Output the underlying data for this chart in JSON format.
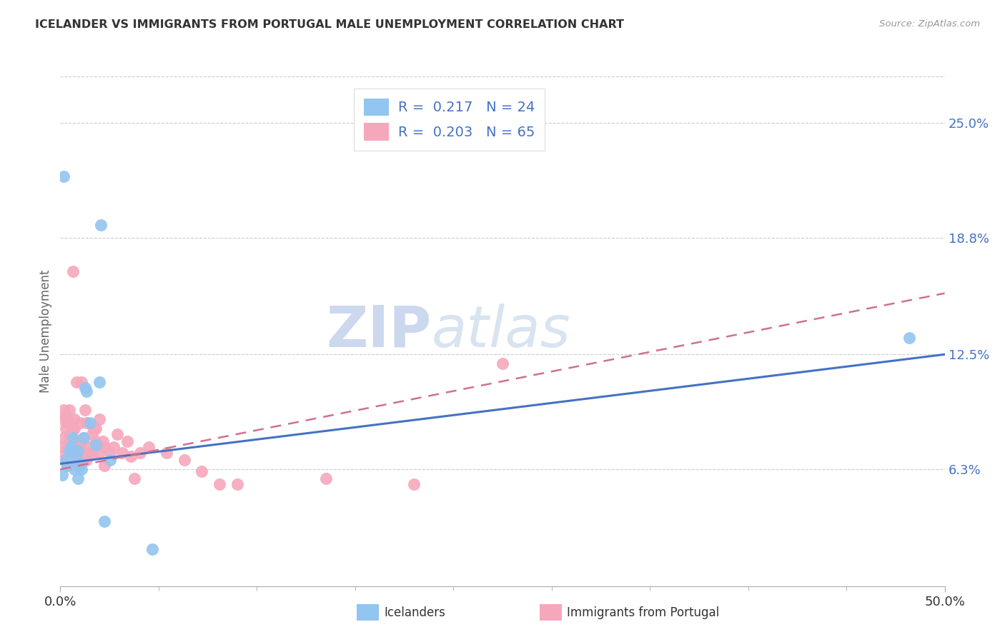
{
  "title": "ICELANDER VS IMMIGRANTS FROM PORTUGAL MALE UNEMPLOYMENT CORRELATION CHART",
  "source": "Source: ZipAtlas.com",
  "ylabel": "Male Unemployment",
  "ytick_vals": [
    0.063,
    0.125,
    0.188,
    0.25
  ],
  "ytick_labels": [
    "6.3%",
    "12.5%",
    "18.8%",
    "25.0%"
  ],
  "xmin": 0.0,
  "xmax": 0.5,
  "ymin": 0.0,
  "ymax": 0.275,
  "color_blue": "#92c5f0",
  "color_pink": "#f5a8bc",
  "line_blue": "#4472c4",
  "line_pink": "#d07090",
  "watermark_zip": "ZIP",
  "watermark_atlas": "atlas",
  "legend_entries": [
    "R =  0.217   N = 24",
    "R =  0.203   N = 65"
  ],
  "bottom_labels": [
    "Icelanders",
    "Immigrants from Portugal"
  ],
  "ice_line_x0": 0.0,
  "ice_line_y0": 0.066,
  "ice_line_x1": 0.5,
  "ice_line_y1": 0.125,
  "port_line_x0": 0.0,
  "port_line_y0": 0.063,
  "port_line_x1": 0.5,
  "port_line_y1": 0.158,
  "icelanders_x": [
    0.001,
    0.002,
    0.003,
    0.004,
    0.005,
    0.006,
    0.007,
    0.008,
    0.009,
    0.01,
    0.01,
    0.011,
    0.012,
    0.013,
    0.014,
    0.015,
    0.017,
    0.02,
    0.022,
    0.023,
    0.025,
    0.028,
    0.052,
    0.48
  ],
  "icelanders_y": [
    0.06,
    0.221,
    0.068,
    0.065,
    0.073,
    0.075,
    0.08,
    0.063,
    0.07,
    0.058,
    0.073,
    0.065,
    0.063,
    0.08,
    0.107,
    0.105,
    0.088,
    0.076,
    0.11,
    0.195,
    0.035,
    0.068,
    0.02,
    0.134
  ],
  "portugal_x": [
    0.001,
    0.001,
    0.002,
    0.002,
    0.002,
    0.003,
    0.003,
    0.003,
    0.004,
    0.004,
    0.004,
    0.005,
    0.005,
    0.005,
    0.006,
    0.006,
    0.006,
    0.007,
    0.007,
    0.007,
    0.008,
    0.008,
    0.008,
    0.009,
    0.009,
    0.01,
    0.01,
    0.011,
    0.011,
    0.012,
    0.012,
    0.013,
    0.013,
    0.014,
    0.015,
    0.015,
    0.016,
    0.016,
    0.018,
    0.018,
    0.019,
    0.02,
    0.02,
    0.022,
    0.022,
    0.024,
    0.025,
    0.025,
    0.028,
    0.03,
    0.032,
    0.035,
    0.038,
    0.04,
    0.042,
    0.045,
    0.05,
    0.06,
    0.07,
    0.08,
    0.09,
    0.1,
    0.15,
    0.2,
    0.25
  ],
  "portugal_y": [
    0.075,
    0.09,
    0.08,
    0.095,
    0.068,
    0.085,
    0.072,
    0.092,
    0.088,
    0.075,
    0.065,
    0.095,
    0.082,
    0.078,
    0.075,
    0.082,
    0.088,
    0.085,
    0.073,
    0.17,
    0.09,
    0.078,
    0.085,
    0.11,
    0.068,
    0.078,
    0.065,
    0.088,
    0.076,
    0.11,
    0.072,
    0.08,
    0.068,
    0.095,
    0.068,
    0.088,
    0.075,
    0.072,
    0.082,
    0.072,
    0.085,
    0.085,
    0.078,
    0.09,
    0.072,
    0.078,
    0.065,
    0.075,
    0.072,
    0.075,
    0.082,
    0.072,
    0.078,
    0.07,
    0.058,
    0.072,
    0.075,
    0.072,
    0.068,
    0.062,
    0.055,
    0.055,
    0.058,
    0.055,
    0.12
  ]
}
